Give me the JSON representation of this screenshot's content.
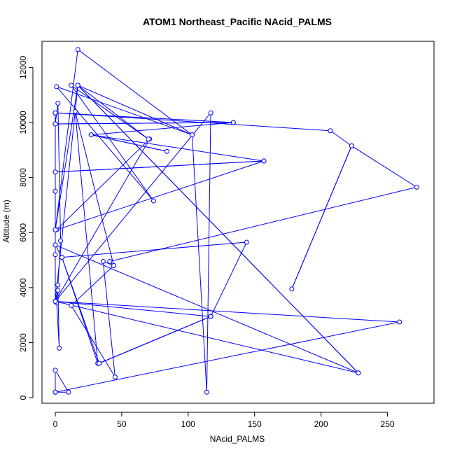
{
  "chart_data": {
    "type": "line",
    "title": "ATOM1 Northeast_Pacific NAcid_PALMS",
    "xlabel": "NAcid_PALMS",
    "ylabel": "Altitude (m)",
    "xlim": [
      -10,
      285
    ],
    "ylim": [
      -200,
      12950
    ],
    "x_ticks": [
      0,
      50,
      100,
      150,
      200,
      250
    ],
    "y_ticks": [
      0,
      2000,
      4000,
      6000,
      8000,
      10000,
      12000
    ],
    "marker": "open-circle",
    "grid": false,
    "legend": "none",
    "series": [
      {
        "points": [
          [
            0,
            200
          ],
          [
            0,
            200
          ],
          [
            10,
            200
          ],
          [
            0,
            1000
          ],
          [
            0,
            200
          ],
          [
            259,
            2750
          ],
          [
            0,
            3500
          ],
          [
            228,
            900
          ],
          [
            0,
            5550
          ],
          [
            0,
            5200
          ],
          [
            0,
            3500
          ],
          [
            2,
            3900
          ],
          [
            3,
            1800
          ],
          [
            1,
            3450
          ],
          [
            2,
            4100
          ],
          [
            4,
            5700
          ],
          [
            2,
            10700
          ],
          [
            0,
            9950
          ],
          [
            134,
            10000
          ],
          [
            0,
            9950
          ],
          [
            0,
            10350
          ],
          [
            134,
            10000
          ],
          [
            27,
            9550
          ],
          [
            84,
            8950
          ],
          [
            27,
            9550
          ],
          [
            157,
            8600
          ],
          [
            0,
            8200
          ],
          [
            157,
            8600
          ],
          [
            1,
            6100
          ],
          [
            71,
            9400
          ],
          [
            0,
            3500
          ],
          [
            117,
            10350
          ],
          [
            114,
            200
          ],
          [
            103,
            9550
          ],
          [
            1,
            11300
          ],
          [
            74,
            7150
          ],
          [
            12,
            11350
          ],
          [
            70,
            9400
          ],
          [
            17,
            11350
          ],
          [
            0,
            6100
          ],
          [
            0,
            7500
          ],
          [
            0,
            10350
          ],
          [
            207,
            9700
          ],
          [
            223,
            9150
          ],
          [
            178,
            3950
          ],
          [
            223,
            9150
          ],
          [
            272,
            7650
          ],
          [
            41,
            4950
          ],
          [
            44,
            4800
          ],
          [
            36,
            4950
          ],
          [
            45,
            750
          ],
          [
            12,
            3350
          ],
          [
            44,
            4800
          ],
          [
            15,
            10400
          ],
          [
            32,
            1250
          ],
          [
            5,
            5100
          ],
          [
            144,
            5650
          ],
          [
            117,
            2950
          ],
          [
            33,
            1250
          ],
          [
            117,
            2950
          ],
          [
            33,
            1250
          ],
          [
            5,
            5100
          ],
          [
            0,
            5550
          ],
          [
            0,
            6100
          ],
          [
            17,
            12650
          ],
          [
            103,
            9550
          ],
          [
            17,
            11350
          ],
          [
            228,
            900
          ],
          [
            17,
            11350
          ],
          [
            0,
            3500
          ],
          [
            117,
            2950
          ]
        ],
        "color": "#0000ff"
      }
    ]
  }
}
